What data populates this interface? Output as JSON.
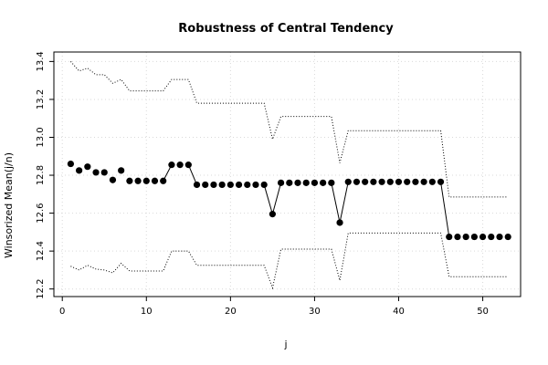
{
  "chart_data": {
    "type": "scatter",
    "title": "Robustness of Central Tendency",
    "xlabel": "j",
    "ylabel": "Winsorized Mean(j/n)",
    "xlim": [
      -1,
      54.5
    ],
    "ylim": [
      12.16,
      13.45
    ],
    "xticks": [
      0,
      10,
      20,
      30,
      40,
      50
    ],
    "yticks": [
      12.2,
      12.4,
      12.6,
      12.8,
      13.0,
      13.2,
      13.4
    ],
    "ytick_labels": [
      "12.2",
      "12.4",
      "12.6",
      "12.8",
      "13.0",
      "13.2",
      "13.4"
    ],
    "grid": true,
    "series": [
      {
        "role": "winsorized-mean",
        "style": "points",
        "color": "#000000",
        "x": [
          1,
          2,
          3,
          4,
          5,
          6,
          7,
          8,
          9,
          10,
          11,
          12,
          13,
          14,
          15,
          16,
          17,
          18,
          19,
          20,
          21,
          22,
          23,
          24,
          25,
          26,
          27,
          28,
          29,
          30,
          31,
          32,
          33,
          34,
          35,
          36,
          37,
          38,
          39,
          40,
          41,
          42,
          43,
          44,
          45,
          46,
          47,
          48,
          49,
          50,
          51,
          52,
          53
        ],
        "y": [
          12.86,
          12.825,
          12.845,
          12.815,
          12.815,
          12.775,
          12.825,
          12.77,
          12.77,
          12.77,
          12.77,
          12.77,
          12.855,
          12.855,
          12.855,
          12.75,
          12.75,
          12.75,
          12.75,
          12.75,
          12.75,
          12.75,
          12.75,
          12.75,
          12.595,
          12.76,
          12.76,
          12.76,
          12.76,
          12.76,
          12.76,
          12.76,
          12.55,
          12.765,
          12.765,
          12.765,
          12.765,
          12.765,
          12.765,
          12.765,
          12.765,
          12.765,
          12.765,
          12.765,
          12.765,
          12.475,
          12.475,
          12.475,
          12.475,
          12.475,
          12.475,
          12.475,
          12.475
        ]
      },
      {
        "role": "upper-bound",
        "style": "dotted-line",
        "color": "#000000",
        "x": [
          1,
          2,
          3,
          4,
          5,
          6,
          7,
          8,
          9,
          10,
          11,
          12,
          13,
          14,
          15,
          16,
          17,
          18,
          19,
          20,
          21,
          22,
          23,
          24,
          25,
          26,
          27,
          28,
          29,
          30,
          31,
          32,
          33,
          34,
          35,
          36,
          37,
          38,
          39,
          40,
          41,
          42,
          43,
          44,
          45,
          46,
          47,
          48,
          49,
          50,
          51,
          52,
          53
        ],
        "y": [
          13.4,
          13.35,
          13.365,
          13.33,
          13.33,
          13.285,
          13.305,
          13.245,
          13.245,
          13.245,
          13.245,
          13.245,
          13.305,
          13.305,
          13.305,
          13.18,
          13.18,
          13.18,
          13.18,
          13.18,
          13.18,
          13.18,
          13.18,
          13.18,
          12.99,
          13.11,
          13.11,
          13.11,
          13.11,
          13.11,
          13.11,
          13.11,
          12.865,
          13.035,
          13.035,
          13.035,
          13.035,
          13.035,
          13.035,
          13.035,
          13.035,
          13.035,
          13.035,
          13.035,
          13.035,
          12.685,
          12.685,
          12.685,
          12.685,
          12.685,
          12.685,
          12.685,
          12.685
        ]
      },
      {
        "role": "lower-bound",
        "style": "dotted-line",
        "color": "#000000",
        "x": [
          1,
          2,
          3,
          4,
          5,
          6,
          7,
          8,
          9,
          10,
          11,
          12,
          13,
          14,
          15,
          16,
          17,
          18,
          19,
          20,
          21,
          22,
          23,
          24,
          25,
          26,
          27,
          28,
          29,
          30,
          31,
          32,
          33,
          34,
          35,
          36,
          37,
          38,
          39,
          40,
          41,
          42,
          43,
          44,
          45,
          46,
          47,
          48,
          49,
          50,
          51,
          52,
          53
        ],
        "y": [
          12.32,
          12.3,
          12.325,
          12.305,
          12.3,
          12.285,
          12.335,
          12.295,
          12.295,
          12.295,
          12.295,
          12.295,
          12.4,
          12.4,
          12.4,
          12.325,
          12.325,
          12.325,
          12.325,
          12.325,
          12.325,
          12.325,
          12.325,
          12.325,
          12.205,
          12.41,
          12.41,
          12.41,
          12.41,
          12.41,
          12.41,
          12.41,
          12.245,
          12.495,
          12.495,
          12.495,
          12.495,
          12.495,
          12.495,
          12.495,
          12.495,
          12.495,
          12.495,
          12.495,
          12.495,
          12.265,
          12.265,
          12.265,
          12.265,
          12.265,
          12.265,
          12.265,
          12.265
        ]
      }
    ],
    "connector_segments": [
      [
        12,
        13
      ],
      [
        15,
        16
      ],
      [
        24,
        25
      ],
      [
        25,
        26
      ],
      [
        32,
        33
      ],
      [
        33,
        34
      ],
      [
        45,
        46
      ]
    ]
  }
}
